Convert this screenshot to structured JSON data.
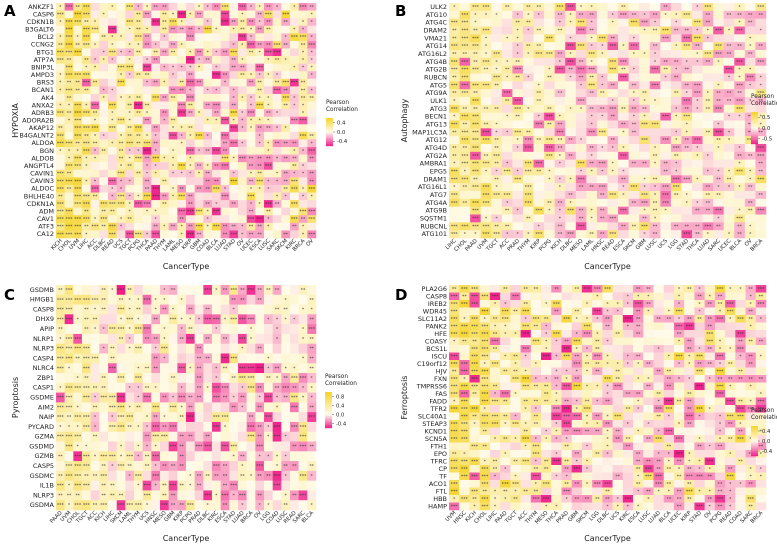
{
  "chart_data": [
    {
      "panel": "A",
      "type": "heatmap",
      "ylabel": "HYPOXIA",
      "xlabel": "CancerType",
      "legend_title": "Pearson\nCorrelation",
      "legend_ticks": [
        "0.4",
        "0.0",
        "-0.4"
      ],
      "legend_values": [
        0.4,
        0.0,
        -0.4
      ],
      "color_range": [
        -0.6,
        0.6
      ],
      "colors": {
        "high": "#f5d327",
        "mid": "#fffbea",
        "low": "#ee1d8a"
      },
      "rows": [
        "ANKZF1",
        "CASP6",
        "CDKN1B",
        "B3GALT6",
        "BCL2",
        "CCNG2",
        "BTG1",
        "ATP7A",
        "BNIP3L",
        "AMPD3",
        "BRS3",
        "BCAN1",
        "AK4",
        "ANXA2",
        "ADRB3",
        "ADORA2B",
        "AKAP12",
        "B4GALNT2",
        "ALDOA",
        "BGN",
        "ALDOB",
        "ANGPTL4",
        "CAVIN1",
        "CAVIN3",
        "ALDOC",
        "BHLHE40",
        "CDKN1A",
        "ADM",
        "CAV1",
        "ATF3",
        "CA12"
      ],
      "columns": [
        "KICH",
        "CHOL",
        "UVM",
        "LIHC",
        "ACC",
        "DLBC",
        "READ",
        "UCS",
        "TGCT",
        "PCPG",
        "THCA",
        "PAAD",
        "THYM",
        "LAML",
        "MESO",
        "KIRP",
        "GBM",
        "COAD",
        "BLCA",
        "LUAD",
        "STAD",
        "OV",
        "UCEC",
        "ESCA",
        "LUSC",
        "SARC",
        "SKCM",
        "KIRC",
        "BRCA",
        "OV"
      ]
    },
    {
      "panel": "B",
      "type": "heatmap",
      "ylabel": "Autophagy",
      "xlabel": "CancerType",
      "legend_title": "Pearson\nCorrelation",
      "legend_ticks": [
        "0.5",
        "0.0",
        "-0.5"
      ],
      "legend_values": [
        0.5,
        0.0,
        -0.5
      ],
      "color_range": [
        -0.75,
        0.75
      ],
      "colors": {
        "high": "#f5d327",
        "mid": "#fffbea",
        "low": "#ee1d8a"
      },
      "rows": [
        "ULK2",
        "ATG10",
        "ATG4C",
        "DRAM2",
        "VMA21",
        "ATG14",
        "ATG16L2",
        "ATG4B",
        "ATG2B",
        "RUBCN",
        "ATG5",
        "ATG9A",
        "ULK1",
        "ATG3",
        "BECN1",
        "ATG13",
        "MAP1LC3A",
        "ATG12",
        "ATG4D",
        "ATG2A",
        "AMBRA1",
        "EPG5",
        "DRAM1",
        "ATG16L1",
        "ATG7",
        "ATG4A",
        "ATG9B",
        "SQSTM1",
        "RUBCNL",
        "ATG101"
      ],
      "columns": [
        "LIHC",
        "CHOL",
        "PAAD",
        "UVM",
        "TGCT",
        "ACC",
        "PRAD",
        "THYM",
        "KIRP",
        "PCPG",
        "KICH",
        "DLBC",
        "MESO",
        "LAML",
        "HNSC",
        "READ",
        "ESCA",
        "SKCM",
        "GBM",
        "LUSC",
        "UCS",
        "LGG",
        "STAD",
        "THCA",
        "LUAD",
        "SARC",
        "UCEC",
        "BLCA",
        "OV",
        "BRCA"
      ]
    },
    {
      "panel": "C",
      "type": "heatmap",
      "ylabel": "Pyroptosis",
      "xlabel": "CancerType",
      "legend_title": "Pearson\nCorrelation",
      "legend_ticks": [
        "0.8",
        "0.4",
        "0.0",
        "-0.4"
      ],
      "legend_values": [
        0.8,
        0.4,
        0.0,
        -0.4
      ],
      "color_range": [
        -0.6,
        1.0
      ],
      "colors": {
        "high": "#f5d327",
        "mid": "#fffbea",
        "low": "#ee1d8a"
      },
      "rows": [
        "GSDMB",
        "HMGB1",
        "CASP8",
        "DHX9",
        "APIP",
        "NLRP1",
        "NLRP3",
        "CASP4",
        "NLRC4",
        "ZBP1",
        "CASP1",
        "GSDME",
        "AIM2",
        "NAIP",
        "PYCARD",
        "GZMA",
        "GSDMD",
        "GZMB",
        "CASP5",
        "GSDMC",
        "IL1B",
        "NLRP3",
        "GSDMA"
      ],
      "columns": [
        "PAAD",
        "UVM",
        "CHOL",
        "TGCT",
        "ACC",
        "KICH",
        "LIHC",
        "SKCM",
        "LAML",
        "THYM",
        "UCS",
        "HNSC",
        "MESO",
        "GBM",
        "KIRP",
        "PCPG",
        "PRAD",
        "DLBC",
        "KIRC",
        "ESCA",
        "STAD",
        "LUAD",
        "BRCA",
        "OV",
        "LGG",
        "COAD",
        "LUSC",
        "READ",
        "SARC",
        "BLCA"
      ]
    },
    {
      "panel": "D",
      "type": "heatmap",
      "ylabel": "Ferroptosis",
      "xlabel": "CancerType",
      "legend_title": "Pearson\nCorrelation",
      "legend_ticks": [
        "0.4",
        "0.0",
        "-0.4"
      ],
      "legend_values": [
        0.4,
        0.0,
        -0.4
      ],
      "color_range": [
        -0.6,
        0.6
      ],
      "colors": {
        "high": "#f5d327",
        "mid": "#fffbea",
        "low": "#ee1d8a"
      },
      "rows": [
        "PLA2G6",
        "CASP8",
        "IREB2",
        "WDR45",
        "SLC11A2",
        "PANK2",
        "HFE",
        "COASY",
        "BCS1L",
        "ISCU",
        "C19orf12",
        "HJV",
        "FXN",
        "TMPRSS6",
        "FAS",
        "FADD",
        "TFR2",
        "SLC40A1",
        "STEAP3",
        "KCND1",
        "SCN5A",
        "FTH1",
        "EPO",
        "TFRC",
        "CP",
        "TF",
        "ACO1",
        "FTL",
        "HBB",
        "HAMP"
      ],
      "columns": [
        "UVM",
        "HNSC",
        "KICH",
        "CHOL",
        "LIHC",
        "PAAD",
        "TGCT",
        "ACC",
        "THYM",
        "MESO",
        "THCA",
        "PRAD",
        "GBM",
        "SKCM",
        "LGG",
        "DLBC",
        "UCS",
        "KIRC",
        "ESCA",
        "LUSC",
        "LUAD",
        "BLCA",
        "UCEC",
        "KIRP",
        "STAD",
        "OV",
        "PCPG",
        "READ",
        "COAD",
        "SARC",
        "BRCA"
      ]
    }
  ]
}
